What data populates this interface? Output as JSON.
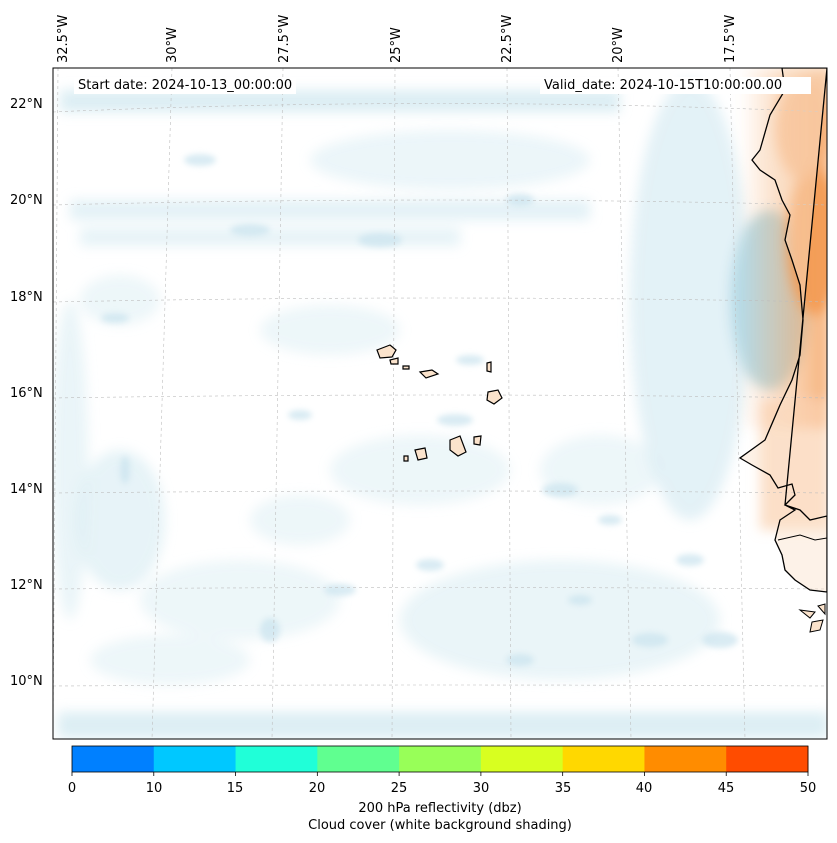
{
  "map": {
    "start_label": "Start date: 2024-10-13_00:00:00",
    "valid_label": "Valid_date: 2024-10-15T10:00:00.00",
    "lon_labels": [
      "32.5°W",
      "30°W",
      "27.5°W",
      "25°W",
      "22.5°W",
      "20°W",
      "17.5°W"
    ],
    "lat_labels": [
      "22°N",
      "20°N",
      "18°N",
      "16°N",
      "14°N",
      "12°N",
      "10°N"
    ],
    "region": "Cape Verde / West Africa coast",
    "shading": {
      "cloud_color": "#cfe6ef",
      "warm_color": "#f4a462",
      "land_fill": "#fbe3cc",
      "coast_color": "#000000"
    }
  },
  "colorbar": {
    "ticks": [
      "0",
      "10",
      "15",
      "20",
      "25",
      "30",
      "35",
      "40",
      "45",
      "50"
    ],
    "colors": [
      "#0080ff",
      "#00c8ff",
      "#20ffd8",
      "#60ff90",
      "#98ff58",
      "#d8ff20",
      "#ffd800",
      "#ff8c00",
      "#ff4c00"
    ],
    "label_line1": "200 hPa reflectivity (dbz)",
    "label_line2": "Cloud cover (white background shading)"
  }
}
